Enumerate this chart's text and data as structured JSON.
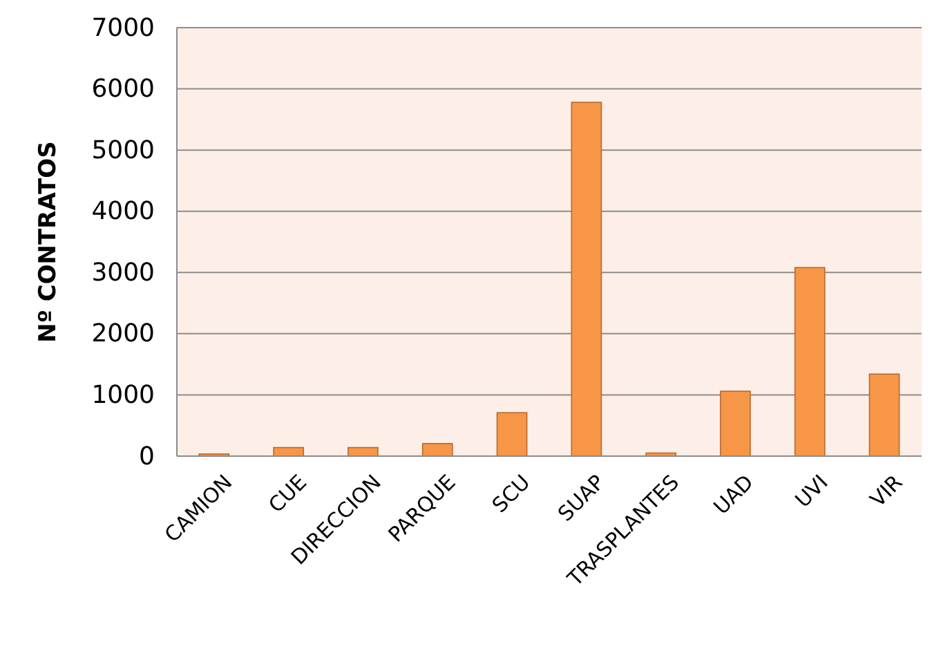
{
  "chart_data": {
    "type": "bar",
    "ylabel": "Nº CONTRATOS",
    "categories": [
      "CAMION",
      "CUE",
      "DIRECCION",
      "PARQUE",
      "SCU",
      "SUAP",
      "TRASPLANTES",
      "UAD",
      "UVI",
      "VIR"
    ],
    "values": [
      35,
      140,
      140,
      205,
      710,
      5780,
      50,
      1060,
      3080,
      1340
    ],
    "color": "#f79646",
    "ylim": [
      0,
      7000
    ],
    "yticks": [
      0,
      1000,
      2000,
      3000,
      4000,
      5000,
      6000,
      7000
    ],
    "grid": "y"
  }
}
